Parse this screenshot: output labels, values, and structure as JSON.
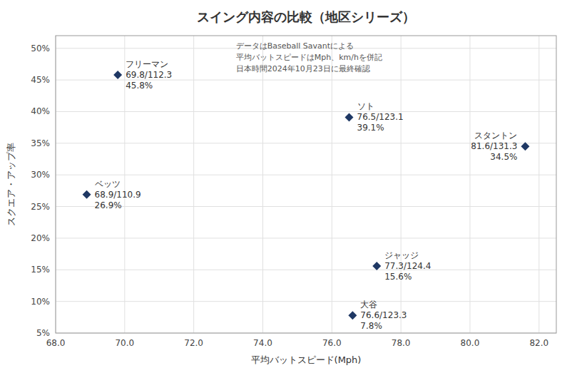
{
  "chart_data": {
    "type": "scatter",
    "title": "スイング内容の比較（地区シリーズ）",
    "xlabel": "平均バットスピード(Mph)",
    "ylabel": "スクエア・アップ率",
    "annotation": "データはBaseball Savantによる\n平均バットスピードはMph、km/hを併記\n日本時間2024年10月23日に最終確認",
    "names": [
      "フリーマン",
      "ベッツ",
      "ソト",
      "大谷",
      "ジャッジ",
      "スタントン"
    ],
    "x": [
      69.8,
      68.9,
      76.5,
      76.6,
      77.3,
      81.6
    ],
    "values": [
      0.458,
      0.269,
      0.391,
      0.078,
      0.156,
      0.345
    ],
    "x_labels": [
      "69.8/112.3",
      "68.9/110.9",
      "76.5/123.1",
      "76.6/123.3",
      "77.3/124.4",
      "81.6/131.3"
    ],
    "value_labels": [
      "45.8%",
      "26.9%",
      "39.1%",
      "7.8%",
      "15.6%",
      "34.5%"
    ],
    "data_labels": true,
    "color": "#1f3864",
    "marker": "diamond",
    "xlim": [
      68.0,
      82.5
    ],
    "ylim": [
      0.05,
      0.52
    ],
    "xticks": [
      {
        "value": 68.0,
        "label": "68.0"
      },
      {
        "value": 70.0,
        "label": "70.0"
      },
      {
        "value": 72.0,
        "label": "72.0"
      },
      {
        "value": 74.0,
        "label": "74.0"
      },
      {
        "value": 76.0,
        "label": "76.0"
      },
      {
        "value": 78.0,
        "label": "78.0"
      },
      {
        "value": 80.0,
        "label": "80.0"
      },
      {
        "value": 82.0,
        "label": "82.0"
      }
    ],
    "yticks": [
      {
        "value": 0.05,
        "label": "5%"
      },
      {
        "value": 0.1,
        "label": "10%"
      },
      {
        "value": 0.15,
        "label": "15%"
      },
      {
        "value": 0.2,
        "label": "20%"
      },
      {
        "value": 0.25,
        "label": "25%"
      },
      {
        "value": 0.3,
        "label": "30%"
      },
      {
        "value": 0.35,
        "label": "35%"
      },
      {
        "value": 0.4,
        "label": "40%"
      },
      {
        "value": 0.45,
        "label": "45%"
      },
      {
        "value": 0.5,
        "label": "50%"
      }
    ],
    "grid": true
  }
}
